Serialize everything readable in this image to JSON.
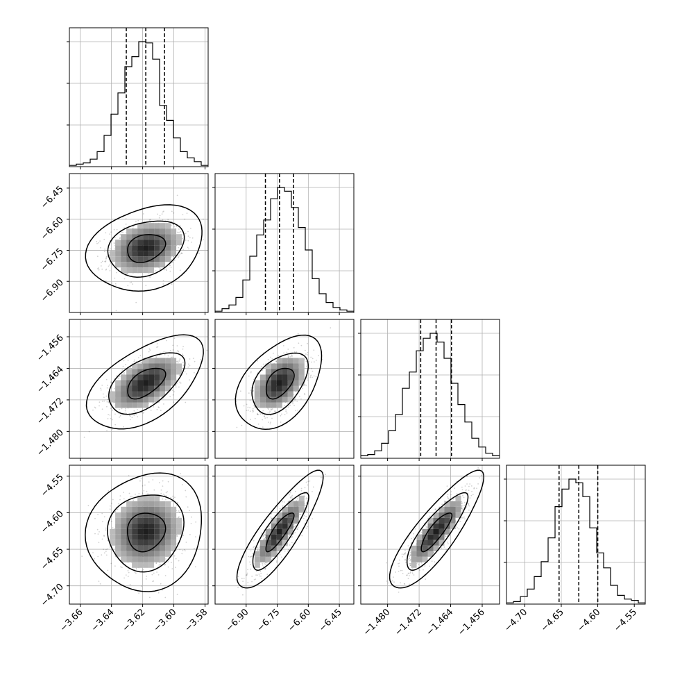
{
  "chart_data": {
    "type": "corner",
    "parameters": [
      {
        "name": "",
        "hist_range": [
          -3.667,
          -3.578
        ],
        "quantiles": [
          -3.6305,
          -3.618,
          -3.606
        ],
        "ticks": [
          -3.66,
          -3.64,
          -3.62,
          -3.6,
          -3.58
        ],
        "tick_labels": [
          "−3.66",
          "−3.64",
          "−3.62",
          "−3.60",
          "−3.58"
        ]
      },
      {
        "name": "",
        "hist_range": [
          -7.05,
          -6.38
        ],
        "quantiles": [
          -6.807,
          -6.739,
          -6.671
        ],
        "ticks": [
          -6.9,
          -6.75,
          -6.6,
          -6.45
        ],
        "tick_labels": [
          "−6.90",
          "−6.75",
          "−6.60",
          "−6.45"
        ]
      },
      {
        "name": "",
        "hist_range": [
          -1.4868,
          -1.4516
        ],
        "quantiles": [
          -1.4716,
          -1.4677,
          -1.4638
        ],
        "ticks": [
          -1.48,
          -1.472,
          -1.464,
          -1.456
        ],
        "tick_labels": [
          "−1.480",
          "−1.472",
          "−1.464",
          "−1.456"
        ]
      },
      {
        "name": "",
        "hist_range": [
          -4.725,
          -4.535
        ],
        "quantiles": [
          -4.653,
          -4.626,
          -4.6
        ],
        "ticks": [
          -4.7,
          -4.65,
          -4.6,
          -4.55
        ],
        "tick_labels": [
          "−4.70",
          "−4.65",
          "−4.60",
          "−4.55"
        ]
      }
    ],
    "histograms": [
      [
        0.01,
        0.02,
        0.03,
        0.06,
        0.12,
        0.25,
        0.42,
        0.59,
        0.8,
        0.88,
        1.0,
        0.99,
        0.86,
        0.49,
        0.37,
        0.23,
        0.12,
        0.07,
        0.04,
        0.01
      ],
      [
        0.01,
        0.03,
        0.06,
        0.12,
        0.26,
        0.45,
        0.62,
        0.74,
        0.91,
        1.0,
        0.97,
        0.84,
        0.68,
        0.5,
        0.27,
        0.15,
        0.08,
        0.04,
        0.02,
        0.01
      ],
      [
        0.02,
        0.03,
        0.06,
        0.12,
        0.22,
        0.35,
        0.56,
        0.69,
        0.86,
        0.96,
        1.0,
        0.93,
        0.8,
        0.6,
        0.43,
        0.29,
        0.16,
        0.09,
        0.04,
        0.02
      ],
      [
        0.01,
        0.02,
        0.06,
        0.12,
        0.22,
        0.34,
        0.53,
        0.78,
        0.92,
        1.0,
        0.97,
        0.86,
        0.61,
        0.41,
        0.29,
        0.15,
        0.07,
        0.04,
        0.03,
        0.01
      ]
    ],
    "correlations": {
      "1_0": 0.25,
      "2_0": 0.55,
      "2_1": 0.45,
      "3_0": 0.1,
      "3_1": 0.85,
      "3_2": 0.85
    },
    "contour_levels": [
      0.39,
      0.86,
      0.99
    ],
    "grid": true,
    "quantile_line_style": "dashed"
  }
}
